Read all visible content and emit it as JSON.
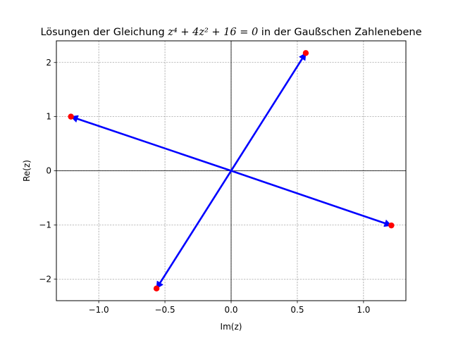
{
  "chart_data": {
    "type": "scatter",
    "title": {
      "prefix": "Lösungen der Gleichung ",
      "equation": "z⁴ + 4z² + 16 = 0",
      "suffix": " in der Gaußschen Zahlenebene"
    },
    "xlabel": "Im(z)",
    "ylabel": "Re(z)",
    "xlim": [
      -1.32,
      1.32
    ],
    "ylim": [
      -2.4,
      2.4
    ],
    "xticks": [
      -1.0,
      -0.5,
      0.0,
      0.5,
      1.0
    ],
    "xtick_labels": [
      "−1.0",
      "−0.5",
      "0.0",
      "0.5",
      "1.0"
    ],
    "yticks": [
      -2,
      -1,
      0,
      1,
      2
    ],
    "ytick_labels": [
      "−2",
      "−1",
      "0",
      "1",
      "2"
    ],
    "grid": true,
    "points": [
      {
        "x": 0.5637,
        "y": 2.1748
      },
      {
        "x": -1.21,
        "y": 1.0
      },
      {
        "x": 1.21,
        "y": -1.01
      },
      {
        "x": -0.5637,
        "y": -2.1748
      }
    ],
    "colors": {
      "point": "#ff0000",
      "arrow": "#0000ff",
      "grid": "#808080",
      "axis_line": "#000000"
    }
  }
}
